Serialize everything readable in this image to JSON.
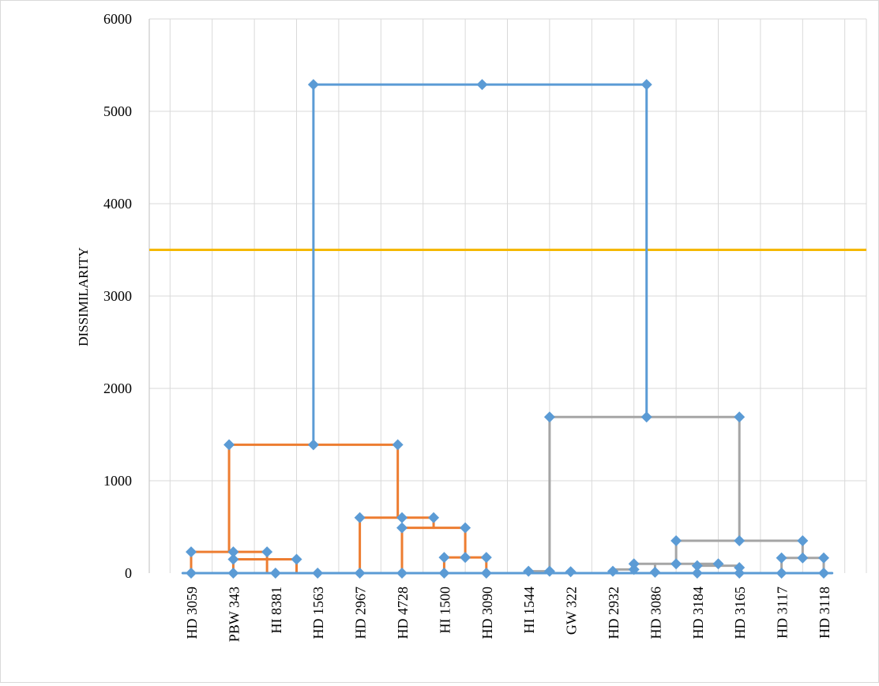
{
  "chart_data": {
    "type": "dendrogram",
    "title": "",
    "xlabel": "",
    "ylabel": "DISSIMILARITY",
    "ylim": [
      0,
      6000
    ],
    "yticks": [
      0,
      1000,
      2000,
      3000,
      4000,
      5000,
      6000
    ],
    "grid": true,
    "legend": "none",
    "categories": [
      "HD 3059",
      "PBW 343",
      "HI 8381",
      "HD 1563",
      "HD 2967",
      "HD 4728",
      "HI 1500",
      "HD 3090",
      "HI 1544",
      "GW 322",
      "HD 2932",
      "HD 3086",
      "HD 3184",
      "HD 3165",
      "HD 3117",
      "HD 3118"
    ],
    "threshold": {
      "value": 3500,
      "color": "#f5b800"
    },
    "colors": {
      "root": "#5b9bd5",
      "cluster1": "#ed7d31",
      "cluster2": "#a5a5a5",
      "marker": "#5b9bd5"
    },
    "series": [
      {
        "name": "cluster1",
        "color": "#ed7d31",
        "segments": [
          [
            [
              0,
              0
            ],
            [
              0,
              230
            ]
          ],
          [
            [
              0,
              230
            ],
            [
              1.8,
              230
            ]
          ],
          [
            [
              1.8,
              230
            ],
            [
              1.8,
              0
            ]
          ],
          [
            [
              1,
              0
            ],
            [
              1,
              150
            ]
          ],
          [
            [
              1,
              150
            ],
            [
              2.5,
              150
            ]
          ],
          [
            [
              2.5,
              150
            ],
            [
              2.5,
              0
            ]
          ],
          [
            [
              2,
              0
            ],
            [
              2,
              10
            ]
          ],
          [
            [
              3,
              0
            ],
            [
              3,
              10
            ]
          ],
          [
            [
              0.9,
              230
            ],
            [
              0.9,
              1390
            ]
          ],
          [
            [
              0.9,
              1390
            ],
            [
              4.9,
              1390
            ]
          ],
          [
            [
              4.9,
              1390
            ],
            [
              4.9,
              600
            ]
          ],
          [
            [
              4,
              0
            ],
            [
              4,
              600
            ]
          ],
          [
            [
              4,
              600
            ],
            [
              5.75,
              600
            ]
          ],
          [
            [
              5.75,
              600
            ],
            [
              5.75,
              490
            ]
          ],
          [
            [
              5,
              0
            ],
            [
              5,
              490
            ]
          ],
          [
            [
              5,
              490
            ],
            [
              6.5,
              490
            ]
          ],
          [
            [
              6.5,
              490
            ],
            [
              6.5,
              170
            ]
          ],
          [
            [
              6,
              0
            ],
            [
              6,
              170
            ]
          ],
          [
            [
              6,
              170
            ],
            [
              7,
              170
            ]
          ],
          [
            [
              7,
              170
            ],
            [
              7,
              0
            ]
          ]
        ]
      },
      {
        "name": "cluster2",
        "color": "#a5a5a5",
        "segments": [
          [
            [
              8,
              20
            ],
            [
              8.5,
              20
            ]
          ],
          [
            [
              8.5,
              20
            ],
            [
              8.5,
              1690
            ]
          ],
          [
            [
              8.5,
              1690
            ],
            [
              13,
              1690
            ]
          ],
          [
            [
              13,
              1690
            ],
            [
              13,
              350
            ]
          ],
          [
            [
              10,
              40
            ],
            [
              10.5,
              40
            ]
          ],
          [
            [
              10.5,
              40
            ],
            [
              10.5,
              100
            ]
          ],
          [
            [
              10.5,
              100
            ],
            [
              12.5,
              100
            ]
          ],
          [
            [
              11,
              10
            ],
            [
              11,
              100
            ]
          ],
          [
            [
              12,
              0
            ],
            [
              12,
              80
            ]
          ],
          [
            [
              12,
              80
            ],
            [
              13,
              80
            ]
          ],
          [
            [
              11.5,
              100
            ],
            [
              11.5,
              350
            ]
          ],
          [
            [
              11.5,
              350
            ],
            [
              14.5,
              350
            ]
          ],
          [
            [
              14.5,
              350
            ],
            [
              14.5,
              165
            ]
          ],
          [
            [
              14,
              0
            ],
            [
              14,
              165
            ]
          ],
          [
            [
              14,
              165
            ],
            [
              15,
              165
            ]
          ],
          [
            [
              15,
              165
            ],
            [
              15,
              0
            ]
          ]
        ]
      },
      {
        "name": "root",
        "color": "#5b9bd5",
        "segments": [
          [
            [
              -0.2,
              0
            ],
            [
              15.2,
              0
            ]
          ],
          [
            [
              2.9,
              1390
            ],
            [
              2.9,
              5290
            ]
          ],
          [
            [
              2.9,
              5290
            ],
            [
              10.8,
              5290
            ]
          ],
          [
            [
              10.8,
              5290
            ],
            [
              10.8,
              1690
            ]
          ]
        ]
      }
    ],
    "markers": [
      [
        0,
        0
      ],
      [
        0,
        230
      ],
      [
        1,
        0
      ],
      [
        1,
        150
      ],
      [
        1,
        230
      ],
      [
        1.8,
        230
      ],
      [
        2,
        0
      ],
      [
        2.5,
        150
      ],
      [
        3,
        0
      ],
      [
        4,
        0
      ],
      [
        4,
        600
      ],
      [
        5,
        0
      ],
      [
        5,
        490
      ],
      [
        5,
        600
      ],
      [
        5.75,
        600
      ],
      [
        6,
        0
      ],
      [
        6,
        170
      ],
      [
        6.5,
        170
      ],
      [
        6.5,
        490
      ],
      [
        7,
        0
      ],
      [
        7,
        170
      ],
      [
        0.9,
        1390
      ],
      [
        2.9,
        1390
      ],
      [
        4.9,
        1390
      ],
      [
        2.9,
        5290
      ],
      [
        6.9,
        5290
      ],
      [
        10.8,
        5290
      ],
      [
        10.8,
        1690
      ],
      [
        8,
        20
      ],
      [
        8.5,
        20
      ],
      [
        8.5,
        1690
      ],
      [
        9,
        15
      ],
      [
        13,
        1690
      ],
      [
        13,
        350
      ],
      [
        10,
        20
      ],
      [
        10.5,
        40
      ],
      [
        10.5,
        100
      ],
      [
        11,
        10
      ],
      [
        11.5,
        100
      ],
      [
        12,
        0
      ],
      [
        12,
        80
      ],
      [
        12.5,
        100
      ],
      [
        13,
        60
      ],
      [
        13,
        0
      ],
      [
        11.5,
        350
      ],
      [
        14.5,
        350
      ],
      [
        14,
        0
      ],
      [
        14,
        165
      ],
      [
        14.5,
        165
      ],
      [
        15,
        0
      ],
      [
        15,
        165
      ]
    ]
  }
}
